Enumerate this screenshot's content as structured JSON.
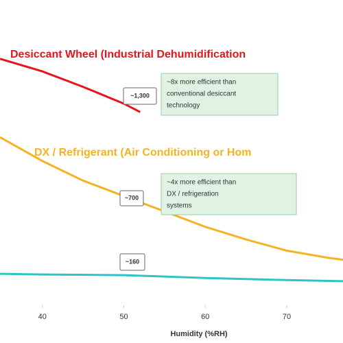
{
  "chart_data": {
    "type": "line",
    "x_label": "Humidity (%RH)",
    "xlim": [
      34.8,
      76.9
    ],
    "xticks": [
      40,
      50,
      60,
      70
    ],
    "ylim": [
      -60,
      2120
    ],
    "series": [
      {
        "name": "Desiccant Wheel (Industrial Dehumidification",
        "color": "#e8141c",
        "x": [
          34.8,
          40,
          45,
          50,
          52
        ],
        "values": [
          1700,
          1610,
          1500,
          1380,
          1320
        ]
      },
      {
        "name": "DX / Refrigerant (Air Conditioning or Hom",
        "color": "#f5b324",
        "x": [
          34.8,
          40,
          45,
          50,
          55,
          60,
          65,
          70,
          75,
          76.9
        ],
        "values": [
          1140,
          970,
          830,
          720,
          610,
          500,
          410,
          330,
          280,
          265
        ]
      },
      {
        "color": "#2ec4c4",
        "x": [
          34.8,
          40,
          50,
          60,
          70,
          76.9
        ],
        "values": [
          165,
          160,
          155,
          135,
          120,
          112
        ]
      }
    ],
    "callouts": [
      "~1,300",
      "~700",
      "~160"
    ],
    "notes": [
      [
        "~8x more efficient than",
        "conventional desiccant",
        "technology"
      ],
      [
        "~4x more efficient than",
        "DX / refrigeration",
        "systems"
      ]
    ]
  }
}
